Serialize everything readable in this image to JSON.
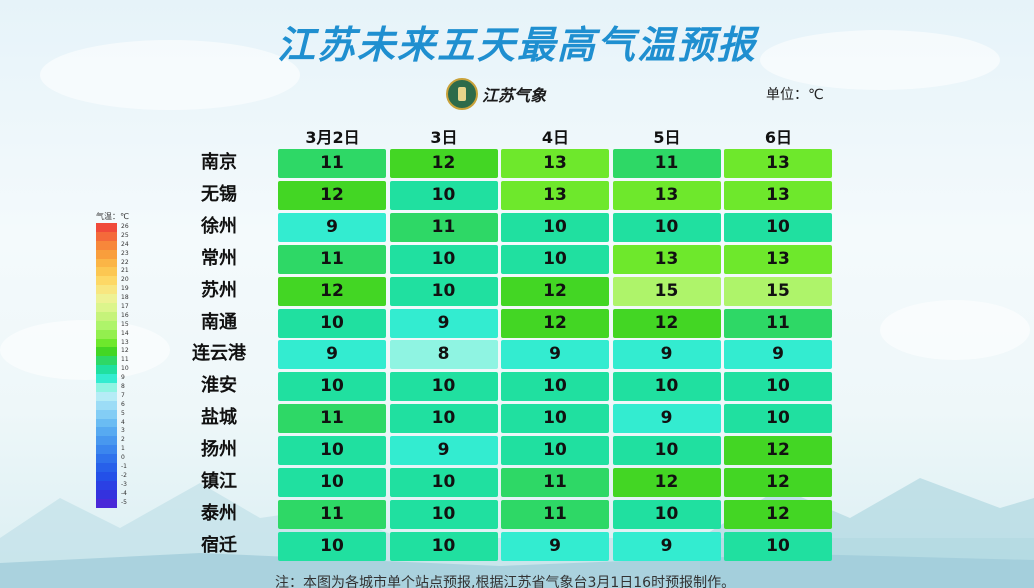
{
  "header": {
    "title": "江苏未来五天最高气温预报",
    "logo_text": "江苏气象",
    "unit": "单位：℃"
  },
  "legend": {
    "title": "气温：℃",
    "entries": [
      {
        "label": "26",
        "color": "#f04a3a"
      },
      {
        "label": "25",
        "color": "#f46a3a"
      },
      {
        "label": "24",
        "color": "#f7873a"
      },
      {
        "label": "23",
        "color": "#f99e3c"
      },
      {
        "label": "22",
        "color": "#fbb546"
      },
      {
        "label": "21",
        "color": "#fcc752"
      },
      {
        "label": "20",
        "color": "#fdd866"
      },
      {
        "label": "19",
        "color": "#f8e680"
      },
      {
        "label": "18",
        "color": "#eef294"
      },
      {
        "label": "17",
        "color": "#dcf58c"
      },
      {
        "label": "16",
        "color": "#c6f37a"
      },
      {
        "label": "15",
        "color": "#aef46a"
      },
      {
        "label": "14",
        "color": "#93ef4e"
      },
      {
        "label": "13",
        "color": "#6ee82c"
      },
      {
        "label": "12",
        "color": "#43d624"
      },
      {
        "label": "11",
        "color": "#2ed866"
      },
      {
        "label": "10",
        "color": "#20e0a0"
      },
      {
        "label": "9",
        "color": "#33ecd0"
      },
      {
        "label": "8",
        "color": "#8ff4e2"
      },
      {
        "label": "7",
        "color": "#b5ecf6"
      },
      {
        "label": "6",
        "color": "#9cdcf6"
      },
      {
        "label": "5",
        "color": "#83cdf5"
      },
      {
        "label": "4",
        "color": "#6abcf3"
      },
      {
        "label": "3",
        "color": "#57aaf1"
      },
      {
        "label": "2",
        "color": "#4898ef"
      },
      {
        "label": "1",
        "color": "#3b86ee"
      },
      {
        "label": "0",
        "color": "#2f72ec"
      },
      {
        "label": "-1",
        "color": "#2760ea"
      },
      {
        "label": "-2",
        "color": "#2350e8"
      },
      {
        "label": "-3",
        "color": "#2a40e4"
      },
      {
        "label": "-4",
        "color": "#3432de"
      },
      {
        "label": "-5",
        "color": "#4a28d8"
      }
    ]
  },
  "chart_data": {
    "type": "heatmap",
    "title": "江苏未来五天最高气温预报",
    "unit": "℃",
    "x": [
      "3月2日",
      "3日",
      "4日",
      "5日",
      "6日"
    ],
    "y": [
      "南京",
      "无锡",
      "徐州",
      "常州",
      "苏州",
      "南通",
      "连云港",
      "淮安",
      "盐城",
      "扬州",
      "镇江",
      "泰州",
      "宿迁"
    ],
    "values": [
      [
        11,
        12,
        13,
        11,
        13
      ],
      [
        12,
        10,
        13,
        13,
        13
      ],
      [
        9,
        11,
        10,
        10,
        10
      ],
      [
        11,
        10,
        10,
        13,
        13
      ],
      [
        12,
        10,
        12,
        15,
        15
      ],
      [
        10,
        9,
        12,
        12,
        11
      ],
      [
        9,
        8,
        9,
        9,
        9
      ],
      [
        10,
        10,
        10,
        10,
        10
      ],
      [
        11,
        10,
        10,
        9,
        10
      ],
      [
        10,
        9,
        10,
        10,
        12
      ],
      [
        10,
        10,
        11,
        12,
        12
      ],
      [
        11,
        10,
        11,
        10,
        12
      ],
      [
        10,
        10,
        9,
        9,
        10
      ]
    ],
    "color_scale": {
      "8": "#8ff4e2",
      "9": "#33ecd0",
      "10": "#20e0a0",
      "11": "#2ed866",
      "12": "#43d624",
      "13": "#6ee82c",
      "15": "#aef46a"
    }
  },
  "footer": {
    "note": "注：本图为各城市单个站点预报,根据江苏省气象台3月1日16时预报制作。"
  }
}
